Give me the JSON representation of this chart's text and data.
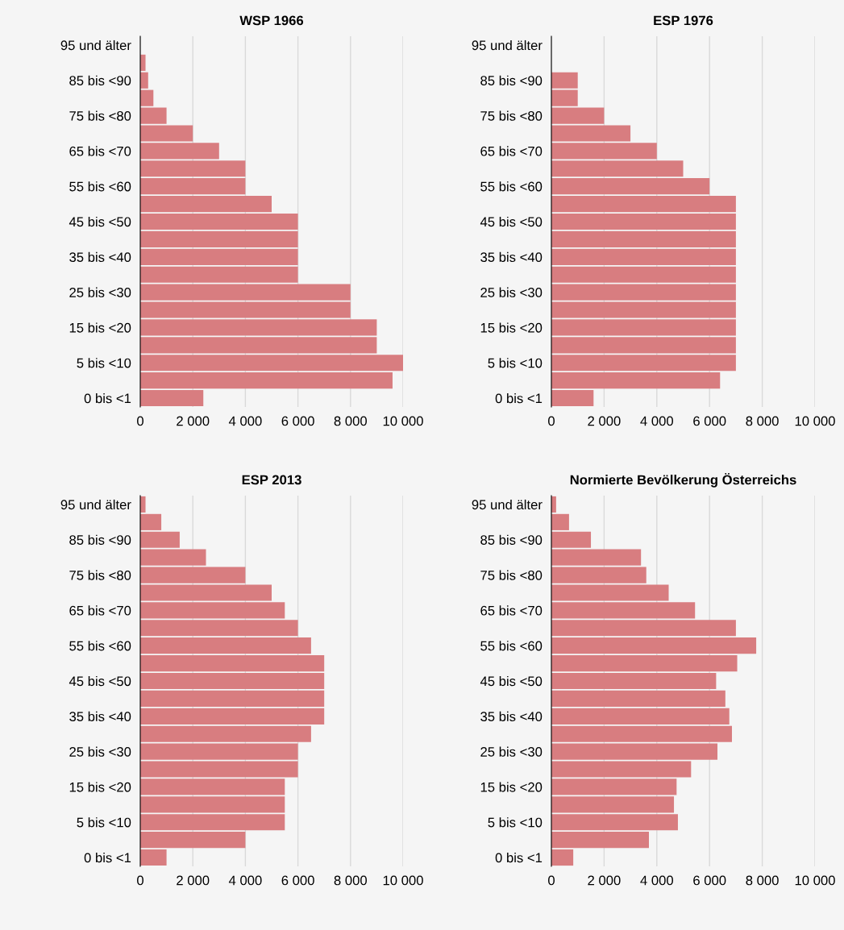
{
  "chart_data": [
    {
      "type": "bar",
      "orientation": "horizontal",
      "title": "WSP 1966",
      "categories": [
        "95 und älter",
        null,
        "85 bis <90",
        null,
        "75 bis <80",
        null,
        "65 bis <70",
        null,
        "55 bis <60",
        null,
        "45 bis <50",
        null,
        "35 bis <40",
        null,
        "25 bis <30",
        null,
        "15 bis <20",
        null,
        "5 bis <10",
        null,
        "0 bis <1"
      ],
      "values": [
        0,
        200,
        300,
        500,
        1000,
        2000,
        3000,
        4000,
        4000,
        5000,
        6000,
        6000,
        6000,
        6000,
        8000,
        8000,
        9000,
        9000,
        10000,
        9600,
        2400
      ],
      "color": "#d87d80",
      "xlim": [
        0,
        10000
      ],
      "xticks": [
        0,
        {
          "value": 2000,
          "label": "2 000"
        },
        {
          "value": 4000,
          "label": "4 000"
        },
        {
          "value": 6000,
          "label": "6 000"
        },
        {
          "value": 8000,
          "label": "8 000"
        },
        {
          "value": 10000,
          "label": "10 000"
        }
      ],
      "grid": "x"
    },
    {
      "type": "bar",
      "orientation": "horizontal",
      "title": "ESP 1976",
      "categories": [
        "95 und älter",
        null,
        "85 bis <90",
        null,
        "75 bis <80",
        null,
        "65 bis <70",
        null,
        "55 bis <60",
        null,
        "45 bis <50",
        null,
        "35 bis <40",
        null,
        "25 bis <30",
        null,
        "15 bis <20",
        null,
        "5 bis <10",
        null,
        "0 bis <1"
      ],
      "values": [
        0,
        0,
        1000,
        1000,
        2000,
        3000,
        4000,
        5000,
        6000,
        7000,
        7000,
        7000,
        7000,
        7000,
        7000,
        7000,
        7000,
        7000,
        7000,
        6400,
        1600
      ],
      "color": "#d87d80",
      "xlim": [
        0,
        10000
      ],
      "xticks": [
        0,
        {
          "value": 2000,
          "label": "2 000"
        },
        {
          "value": 4000,
          "label": "4 000"
        },
        {
          "value": 6000,
          "label": "6 000"
        },
        {
          "value": 8000,
          "label": "8 000"
        },
        {
          "value": 10000,
          "label": "10 000"
        }
      ],
      "grid": "x"
    },
    {
      "type": "bar",
      "orientation": "horizontal",
      "title": "ESP 2013",
      "categories": [
        "95 und älter",
        null,
        "85 bis <90",
        null,
        "75 bis <80",
        null,
        "65 bis <70",
        null,
        "55 bis <60",
        null,
        "45 bis <50",
        null,
        "35 bis <40",
        null,
        "25 bis <30",
        null,
        "15 bis <20",
        null,
        "5 bis <10",
        null,
        "0 bis <1"
      ],
      "values": [
        200,
        800,
        1500,
        2500,
        4000,
        5000,
        5500,
        6000,
        6500,
        7000,
        7000,
        7000,
        7000,
        6500,
        6000,
        6000,
        5500,
        5500,
        5500,
        4000,
        1000
      ],
      "color": "#d87d80",
      "xlim": [
        0,
        10000
      ],
      "xticks": [
        0,
        {
          "value": 2000,
          "label": "2 000"
        },
        {
          "value": 4000,
          "label": "4 000"
        },
        {
          "value": 6000,
          "label": "6 000"
        },
        {
          "value": 8000,
          "label": "8 000"
        },
        {
          "value": 10000,
          "label": "10 000"
        }
      ],
      "grid": "x"
    },
    {
      "type": "bar",
      "orientation": "horizontal",
      "title": "Normierte Bevölkerung Österreichs",
      "categories": [
        "95 und älter",
        null,
        "85 bis <90",
        null,
        "75 bis <80",
        null,
        "65 bis <70",
        null,
        "55 bis <60",
        null,
        "45 bis <50",
        null,
        "35 bis <40",
        null,
        "25 bis <30",
        null,
        "15 bis <20",
        null,
        "5 bis <10",
        null,
        "0 bis <1"
      ],
      "values": [
        180,
        670,
        1500,
        3400,
        3600,
        4450,
        5450,
        7000,
        7770,
        7050,
        6250,
        6600,
        6750,
        6850,
        6300,
        5300,
        4750,
        4650,
        4800,
        3700,
        830
      ],
      "color": "#d87d80",
      "xlim": [
        0,
        10000
      ],
      "xticks": [
        0,
        {
          "value": 2000,
          "label": "2 000"
        },
        {
          "value": 4000,
          "label": "4 000"
        },
        {
          "value": 6000,
          "label": "6 000"
        },
        {
          "value": 8000,
          "label": "8 000"
        },
        {
          "value": 10000,
          "label": "10 000"
        }
      ],
      "grid": "x"
    }
  ]
}
